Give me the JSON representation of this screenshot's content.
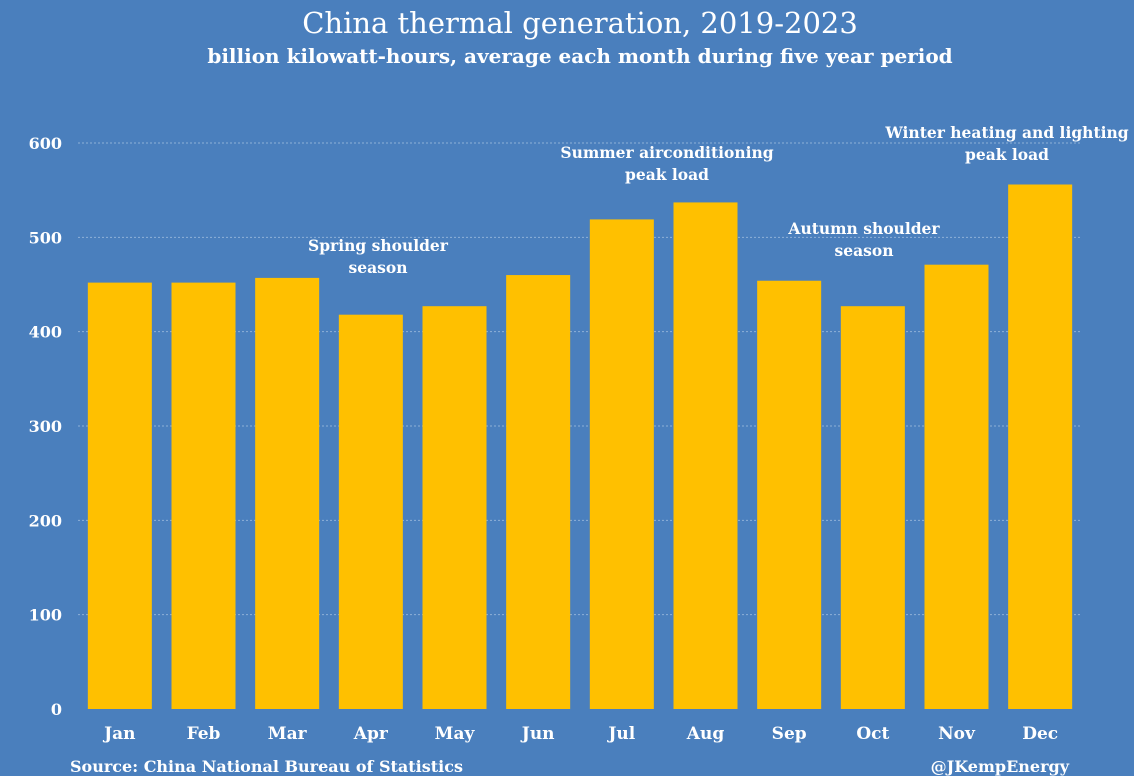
{
  "chart_data": {
    "type": "bar",
    "title": "China thermal generation, 2019-2023",
    "subtitle": "billion kilowatt-hours, average each month during five year period",
    "categories": [
      "Jan",
      "Feb",
      "Mar",
      "Apr",
      "May",
      "Jun",
      "Jul",
      "Aug",
      "Sep",
      "Oct",
      "Nov",
      "Dec"
    ],
    "values": [
      452,
      452,
      457,
      418,
      427,
      460,
      519,
      537,
      454,
      427,
      471,
      556
    ],
    "ylim": [
      0,
      600
    ],
    "yticks": [
      0,
      100,
      200,
      300,
      400,
      500,
      600
    ],
    "grid": true,
    "legend": "none",
    "bar_color": "#ffc000",
    "background_color": "#4a7fbd",
    "annotations": [
      {
        "lines": [
          "Spring shoulder",
          "season"
        ],
        "category": "Apr"
      },
      {
        "lines": [
          "Summer airconditioning",
          "peak load"
        ],
        "category": "Jul"
      },
      {
        "lines": [
          "Autumn shoulder",
          "season"
        ],
        "category": "Oct"
      },
      {
        "lines": [
          "Winter heating and lighting",
          "peak load"
        ],
        "category": "Dec"
      }
    ],
    "source": "Source: China National Bureau of Statistics",
    "credit": "@JKempEnergy"
  }
}
